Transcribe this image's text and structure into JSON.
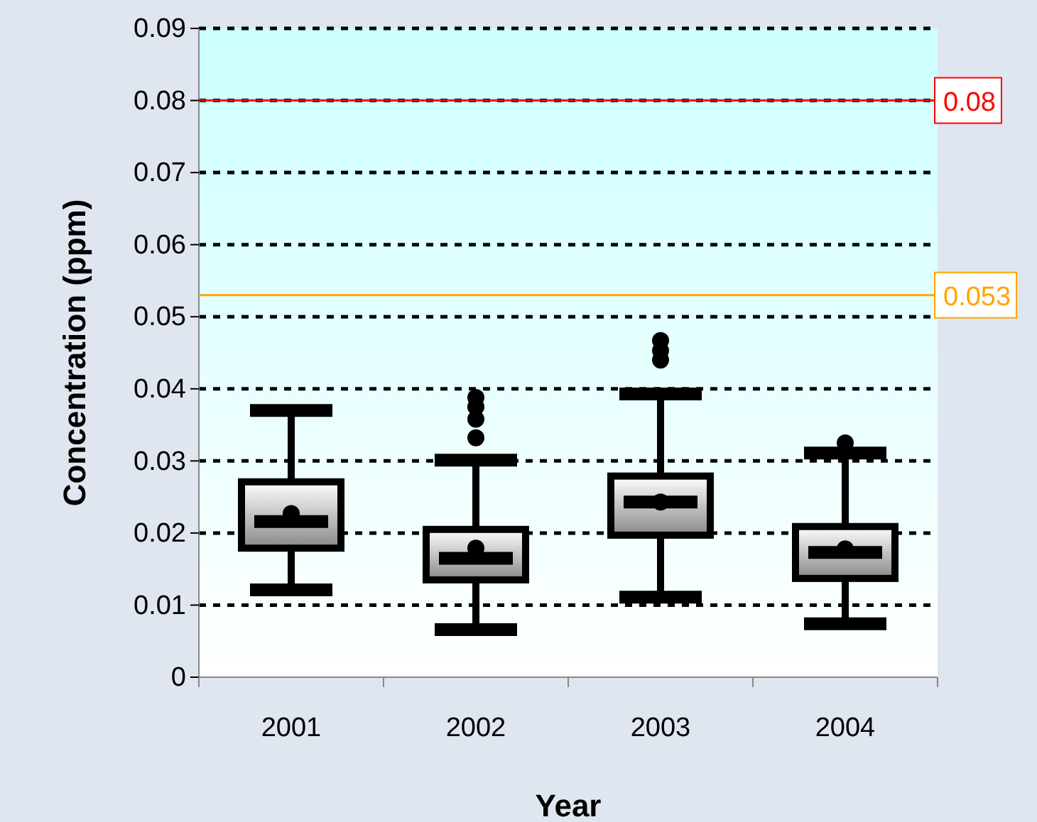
{
  "chart_data": {
    "type": "box",
    "xlabel": "Year",
    "ylabel": "Concentration (ppm)",
    "categories": [
      "2001",
      "2002",
      "2003",
      "2004"
    ],
    "boxes": [
      {
        "low": 0.0121,
        "q1": 0.0179,
        "median": 0.0216,
        "q3": 0.0271,
        "high": 0.037,
        "mean": 0.0227
      },
      {
        "low": 0.0066,
        "q1": 0.0135,
        "median": 0.0165,
        "q3": 0.0205,
        "high": 0.0301,
        "mean": 0.0179,
        "outliers": [
          0.0332,
          0.0358,
          0.0375,
          0.0388
        ]
      },
      {
        "low": 0.0111,
        "q1": 0.0197,
        "median": 0.0243,
        "q3": 0.0279,
        "high": 0.0393,
        "mean": 0.0243,
        "outliers": [
          0.044,
          0.0453,
          0.0467
        ]
      },
      {
        "low": 0.0074,
        "q1": 0.0137,
        "median": 0.0173,
        "q3": 0.0209,
        "high": 0.0311,
        "mean": 0.0178,
        "outliers": [
          0.0325
        ]
      }
    ],
    "ylim": [
      0,
      0.09
    ],
    "yticks": [
      0,
      0.01,
      0.02,
      0.03,
      0.04,
      0.05,
      0.06,
      0.07,
      0.08,
      0.09
    ],
    "grid": "y",
    "ref_lines": [
      {
        "axis": "y",
        "value": 0.08,
        "label": "0.08",
        "color": "#ff0000"
      },
      {
        "axis": "y",
        "value": 0.053,
        "label": "0.053",
        "color": "#ffa500"
      }
    ]
  }
}
